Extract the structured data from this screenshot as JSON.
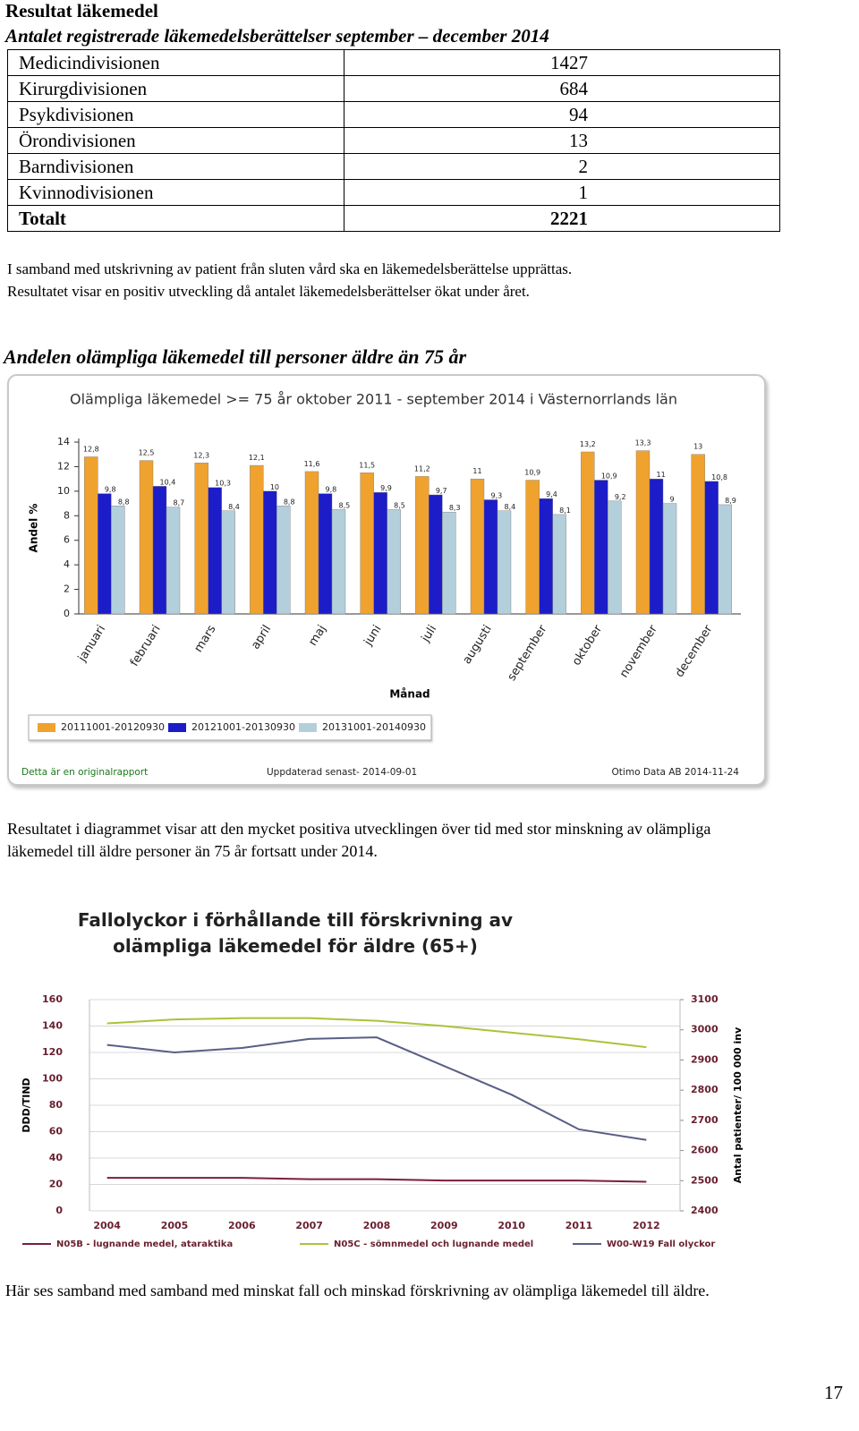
{
  "heading": "Resultat läkemedel",
  "subheading": "Antalet registrerade läkemedelsberättelser september – december 2014",
  "table": {
    "rows": [
      [
        "Medicindivisionen",
        1427
      ],
      [
        "Kirurgdivisionen",
        684
      ],
      [
        "Psykdivisionen",
        94
      ],
      [
        "Örondivisionen",
        13
      ],
      [
        "Barndivisionen",
        2
      ],
      [
        "Kvinnodivisionen",
        1
      ],
      [
        "Totalt",
        2221
      ]
    ]
  },
  "paragraph_1": [
    "I samband med utskrivning av patient från sluten vård ska en läkemedelsberättelse upprättas.",
    "Resultatet visar en positiv utveckling då antalet läkemedelsberättelser ökat under året."
  ],
  "section_heading": "Andelen olämpliga läkemedel till personer äldre än 75 år",
  "paragraph_2": "Resultatet i diagrammet visar att den mycket positiva utvecklingen över tid med stor minskning av olämpliga läkemedel till äldre personer än 75 år fortsatt under 2014.",
  "paragraph_3": "Här ses samband med samband med minskat fall och minskad förskrivning av olämpliga läkemedel till äldre.",
  "page_number": 17,
  "chart_data": [
    {
      "type": "bar",
      "title": "Olämpliga läkemedel >= 75 år oktober 2011 - september 2014 i Västernorrlands län",
      "xlabel": "Månad",
      "ylabel": "Andel %",
      "categories": [
        "januari",
        "februari",
        "mars",
        "april",
        "maj",
        "juni",
        "juli",
        "augusti",
        "september",
        "oktober",
        "november",
        "december"
      ],
      "series": [
        {
          "name": "20111001-20120930",
          "color": "#f0a22e",
          "values": [
            12.8,
            12.5,
            12.3,
            12.1,
            11.6,
            11.5,
            11.2,
            11,
            10.9,
            13.2,
            13.3,
            13
          ],
          "value_labels": [
            "12,8",
            "12,5",
            "12,3",
            "12,1",
            "11,6",
            "11,5",
            "11,2",
            "11",
            "10,9",
            "13,2",
            "13,3",
            "13"
          ]
        },
        {
          "name": "20121001-20130930",
          "color": "#1c1cc8",
          "values": [
            9.8,
            10.4,
            10.3,
            10,
            9.8,
            9.9,
            9.7,
            9.3,
            9.4,
            10.9,
            11,
            10.8
          ],
          "value_labels": [
            "9,8",
            "10,4",
            "10,3",
            "10",
            "9,8",
            "9,9",
            "9,7",
            "9,3",
            "9,4",
            "10,9",
            "11",
            "10,8"
          ]
        },
        {
          "name": "20131001-20140930",
          "color": "#b4cfdc",
          "values": [
            8.8,
            8.7,
            8.4,
            8.8,
            8.5,
            8.5,
            8.3,
            8.4,
            8.1,
            9.2,
            9,
            8.9
          ],
          "value_labels": [
            "8,8",
            "8,7",
            "8,4",
            "8,8",
            "8,5",
            "8,5",
            "8,3",
            "8,4",
            "8,1",
            "9,2",
            "9",
            "8,9"
          ]
        }
      ],
      "ylim": [
        0,
        14
      ],
      "yticks": [
        0,
        2,
        4,
        6,
        8,
        10,
        12,
        14
      ],
      "legend": "bottom",
      "annotations": [
        "Detta är en originalrapport",
        "Uppdaterad senast- 2014-09-01",
        "Otimo Data AB 2014-11-24"
      ]
    },
    {
      "type": "line",
      "title": "Fallolyckor i förhållande till förskrivning av olämpliga läkemedel för äldre (65+)",
      "ylabel": "DDD/TIND",
      "y2label": "Antal patienter/ 100 000 inv",
      "categories": [
        "2004",
        "2005",
        "2006",
        "2007",
        "2008",
        "2009",
        "2010",
        "2011",
        "2012"
      ],
      "series": [
        {
          "name": "N05B - lugnande medel, ataraktika",
          "color": "#7a1f3a",
          "values": [
            25,
            25,
            25,
            24,
            24,
            23,
            23,
            23,
            22
          ]
        },
        {
          "name": "N05C - sömnmedel och lugnande medel",
          "color": "#a8c43a",
          "values": [
            142,
            145,
            146,
            146,
            144,
            140,
            135,
            130,
            124
          ]
        },
        {
          "name": "W00-W19 Fall olyckor",
          "color": "#5a5e86",
          "axis": "y2",
          "values": [
            2950,
            2925,
            2940,
            2970,
            2975,
            2880,
            2785,
            2670,
            2635
          ]
        }
      ],
      "ylim": [
        0,
        160
      ],
      "yticks": [
        0,
        20,
        40,
        60,
        80,
        100,
        120,
        140,
        160
      ],
      "y2lim": [
        2400,
        3100
      ],
      "y2ticks": [
        2400,
        2500,
        2600,
        2700,
        2800,
        2900,
        3000,
        3100
      ],
      "grid": true,
      "legend": "bottom"
    }
  ]
}
